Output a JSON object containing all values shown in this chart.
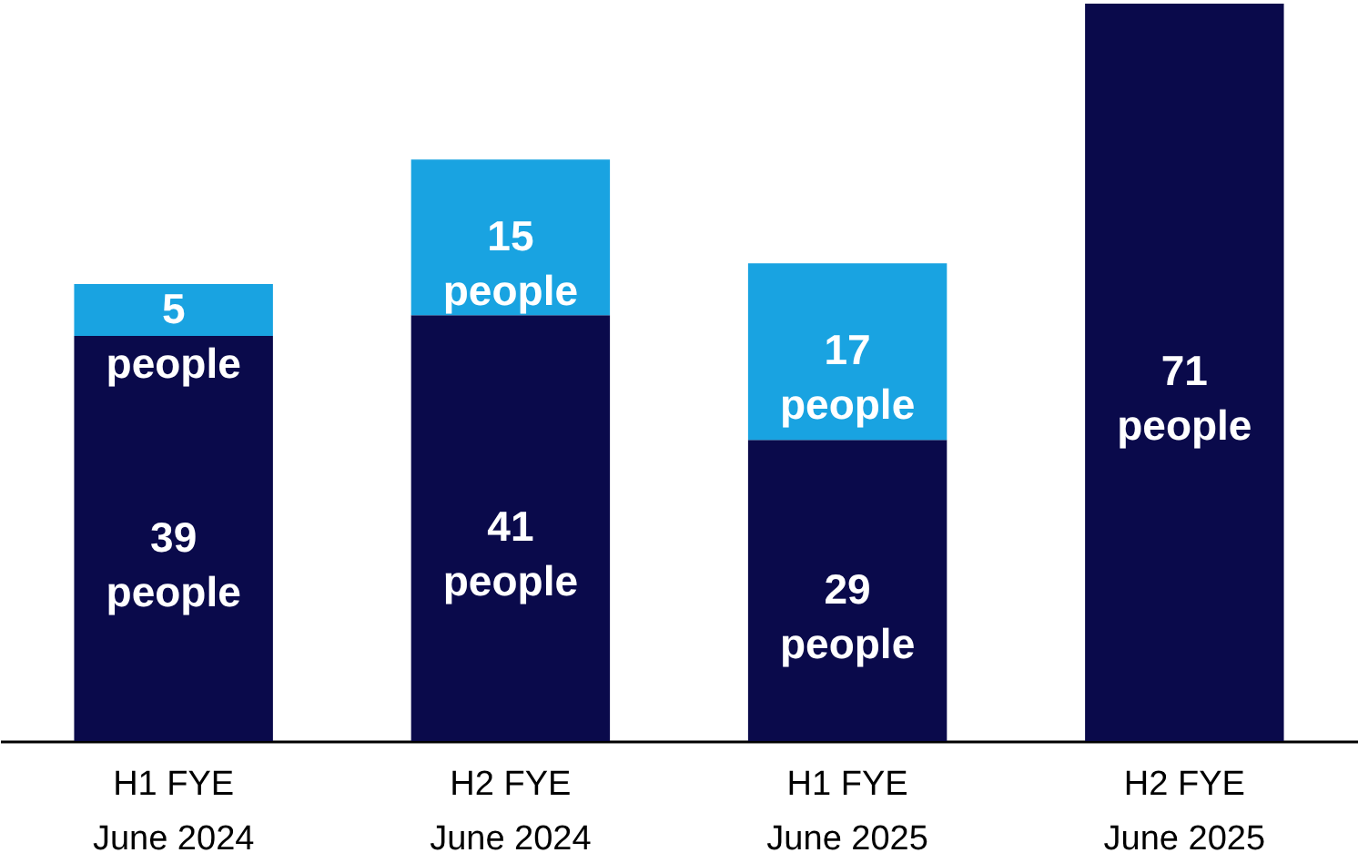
{
  "chart_data": {
    "type": "bar",
    "stacked": true,
    "categories": [
      "H1 FYE June 2024",
      "H2 FYE June 2024",
      "H1 FYE June 2025",
      "H2 FYE June 2025"
    ],
    "series": [
      {
        "color": "#0a0a4b",
        "values": [
          39,
          41,
          29,
          71
        ],
        "value_labels": [
          "39 people",
          "41 people",
          "29 people",
          "71 people"
        ]
      },
      {
        "color": "#19a3e1",
        "values": [
          5,
          15,
          17,
          null
        ],
        "value_labels": [
          "5 people",
          "15 people",
          "17 people",
          null
        ]
      }
    ]
  }
}
